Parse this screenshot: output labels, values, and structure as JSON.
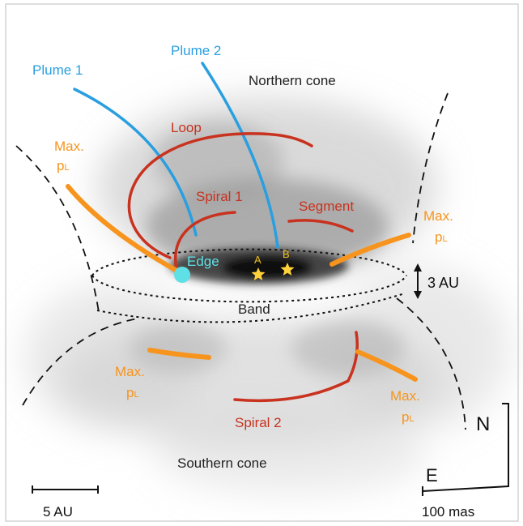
{
  "labels": {
    "plume1": "Plume 1",
    "plume2": "Plume 2",
    "northern_cone": "Northern cone",
    "loop": "Loop",
    "maxpl_left_line1": "Max.",
    "maxpl_left_line2": "p",
    "maxpl_left_sub": "L",
    "spiral1": "Spiral 1",
    "segment": "Segment",
    "maxpl_right_line1": "Max.",
    "maxpl_right_line2": "p",
    "maxpl_right_sub": "L",
    "edge": "Edge",
    "star_a": "A",
    "star_b": "B",
    "three_au": "3 AU",
    "band": "Band",
    "maxpl_bl_line1": "Max.",
    "maxpl_bl_line2": "p",
    "maxpl_bl_sub": "L",
    "maxpl_br_line1": "Max.",
    "maxpl_br_line2": "p",
    "maxpl_br_sub": "L",
    "spiral2": "Spiral 2",
    "southern_cone": "Southern cone",
    "north": "N",
    "east": "E",
    "scale_au": "5 AU",
    "scale_mas": "100 mas"
  },
  "colors": {
    "plume": "#2a9fe0",
    "spiral": "#c8321e",
    "maxpl": "#f7941d",
    "edge": "#5fe0e6",
    "star": "#ffd23a",
    "star_label": "#f0c020",
    "text": "#222222"
  }
}
